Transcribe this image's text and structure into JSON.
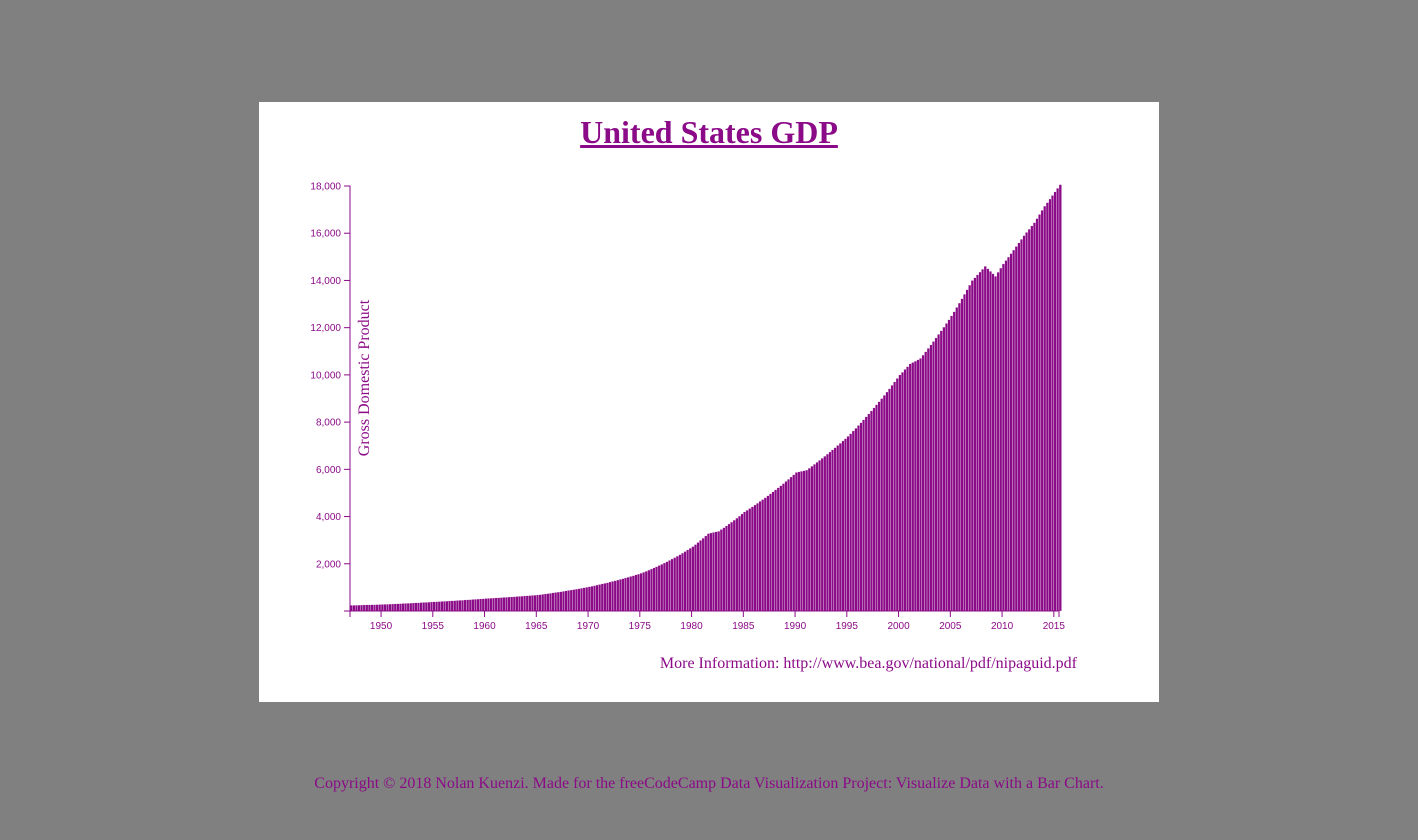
{
  "page": {
    "background_color": "#808080",
    "card_color": "#ffffff",
    "accent_color": "#8b0a87",
    "footer_text": "Copyright © 2018 Nolan Kuenzi. Made for the freeCodeCamp Data Visualization Project: Visualize Data with a Bar Chart."
  },
  "chart_data": {
    "type": "bar",
    "title": "United States GDP",
    "ylabel": "Gross Domestic Product",
    "xlabel": "",
    "note": "More Information: http://www.bea.gov/national/pdf/nipaguid.pdf",
    "x_range": [
      1947,
      2015.5
    ],
    "ylim": [
      0,
      18000
    ],
    "x_ticks": [
      "1950",
      "1955",
      "1960",
      "1965",
      "1970",
      "1975",
      "1980",
      "1985",
      "1990",
      "1995",
      "2000",
      "2005",
      "2010",
      "2015"
    ],
    "y_ticks": [
      "2,000",
      "4,000",
      "6,000",
      "8,000",
      "10,000",
      "12,000",
      "14,000",
      "16,000",
      "18,000"
    ],
    "bar_color": "#8b0a87",
    "grid": false,
    "series": [
      {
        "frequency": "quarterly",
        "start": "1947-01-01",
        "end": "2015-07-01",
        "anchors": [
          {
            "date": "1947-01-01",
            "value": 243
          },
          {
            "date": "1950-01-01",
            "value": 280
          },
          {
            "date": "1955-01-01",
            "value": 390
          },
          {
            "date": "1960-01-01",
            "value": 530
          },
          {
            "date": "1965-01-01",
            "value": 680
          },
          {
            "date": "1970-01-01",
            "value": 1030
          },
          {
            "date": "1975-01-01",
            "value": 1600
          },
          {
            "date": "1980-01-01",
            "value": 2730
          },
          {
            "date": "1981-07-01",
            "value": 3280
          },
          {
            "date": "1982-07-01",
            "value": 3380
          },
          {
            "date": "1985-01-01",
            "value": 4200
          },
          {
            "date": "1990-01-01",
            "value": 5870
          },
          {
            "date": "1991-01-01",
            "value": 5970
          },
          {
            "date": "1995-01-01",
            "value": 7400
          },
          {
            "date": "2000-01-01",
            "value": 10000
          },
          {
            "date": "2001-01-01",
            "value": 10470
          },
          {
            "date": "2002-01-01",
            "value": 10700
          },
          {
            "date": "2005-01-01",
            "value": 12500
          },
          {
            "date": "2007-01-01",
            "value": 14000
          },
          {
            "date": "2008-04-01",
            "value": 14600
          },
          {
            "date": "2009-04-01",
            "value": 14180
          },
          {
            "date": "2010-01-01",
            "value": 14700
          },
          {
            "date": "2012-01-01",
            "value": 15900
          },
          {
            "date": "2013-01-01",
            "value": 16450
          },
          {
            "date": "2014-01-01",
            "value": 17150
          },
          {
            "date": "2015-07-01",
            "value": 18060
          }
        ]
      }
    ]
  }
}
